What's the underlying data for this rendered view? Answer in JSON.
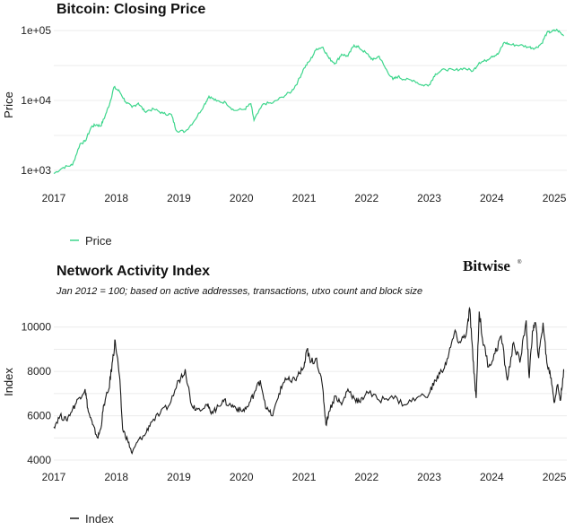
{
  "brand": {
    "name": "Bitwise",
    "mark": "®"
  },
  "chart_data": [
    {
      "type": "line",
      "title": "Bitcoin: Closing Price",
      "subtitle": "",
      "xlabel": "",
      "ylabel": "Price",
      "yscale": "log",
      "ylim": [
        700,
        120000
      ],
      "xlim": [
        2017.0,
        2025.2
      ],
      "x_ticks": [
        2017,
        2018,
        2019,
        2020,
        2021,
        2022,
        2023,
        2024,
        2025
      ],
      "x_tick_labels": [
        "2017",
        "2018",
        "2019",
        "2020",
        "2021",
        "2022",
        "2023",
        "2024",
        "2025"
      ],
      "y_ticks": [
        1000,
        10000,
        100000
      ],
      "y_tick_labels": [
        "1e+03",
        "1e+04",
        "1e+05"
      ],
      "legend": {
        "position": "bottom-left",
        "entries": [
          "Price"
        ]
      },
      "series": [
        {
          "name": "Price",
          "color": "#3dd68c",
          "x": [
            2017.0,
            2017.15,
            2017.3,
            2017.42,
            2017.5,
            2017.6,
            2017.68,
            2017.75,
            2017.82,
            2017.9,
            2017.96,
            2018.05,
            2018.15,
            2018.25,
            2018.35,
            2018.45,
            2018.6,
            2018.75,
            2018.88,
            2018.96,
            2019.1,
            2019.25,
            2019.4,
            2019.48,
            2019.6,
            2019.75,
            2019.88,
            2020.05,
            2020.15,
            2020.2,
            2020.35,
            2020.5,
            2020.65,
            2020.8,
            2020.9,
            2021.0,
            2021.1,
            2021.2,
            2021.3,
            2021.4,
            2021.5,
            2021.6,
            2021.7,
            2021.8,
            2021.88,
            2022.0,
            2022.1,
            2022.2,
            2022.3,
            2022.42,
            2022.5,
            2022.6,
            2022.75,
            2022.88,
            2023.0,
            2023.1,
            2023.25,
            2023.4,
            2023.55,
            2023.7,
            2023.8,
            2023.9,
            2024.0,
            2024.1,
            2024.2,
            2024.3,
            2024.45,
            2024.6,
            2024.7,
            2024.8,
            2024.88,
            2024.96,
            2025.05,
            2025.15
          ],
          "values": [
            900,
            1100,
            1200,
            2400,
            2600,
            4200,
            4500,
            4300,
            6000,
            9500,
            15500,
            13500,
            9500,
            8000,
            9200,
            7000,
            7500,
            6500,
            6300,
            3700,
            3600,
            5200,
            8500,
            11500,
            9800,
            9300,
            7200,
            7500,
            9000,
            5200,
            9000,
            9200,
            11200,
            13500,
            18500,
            29000,
            38000,
            55000,
            58000,
            40000,
            34000,
            46000,
            43000,
            62000,
            57000,
            47000,
            38000,
            43000,
            29000,
            20000,
            22000,
            20000,
            19500,
            16500,
            16800,
            24000,
            28000,
            27000,
            29000,
            26500,
            35000,
            37000,
            43000,
            46000,
            68000,
            63000,
            62000,
            58000,
            56000,
            66000,
            93000,
            97000,
            102000,
            84000
          ]
        }
      ]
    },
    {
      "type": "line",
      "title": "Network Activity Index",
      "subtitle": "Jan 2012 = 100; based on active addresses, transactions, utxo count and block size",
      "xlabel": "",
      "ylabel": "Index",
      "ylim": [
        3800,
        11000
      ],
      "xlim": [
        2017.0,
        2025.2
      ],
      "x_ticks": [
        2017,
        2018,
        2019,
        2020,
        2021,
        2022,
        2023,
        2024,
        2025
      ],
      "x_tick_labels": [
        "2017",
        "2018",
        "2019",
        "2020",
        "2021",
        "2022",
        "2023",
        "2024",
        "2025"
      ],
      "y_ticks": [
        4000,
        6000,
        8000,
        10000
      ],
      "y_tick_labels": [
        "4000",
        "6000",
        "8000",
        "10000"
      ],
      "legend": {
        "position": "bottom-left",
        "entries": [
          "Index"
        ]
      },
      "series": [
        {
          "name": "Index",
          "color": "#1a1a1a",
          "x": [
            2017.0,
            2017.1,
            2017.2,
            2017.3,
            2017.4,
            2017.5,
            2017.55,
            2017.62,
            2017.7,
            2017.75,
            2017.8,
            2017.88,
            2017.94,
            2017.98,
            2018.05,
            2018.1,
            2018.18,
            2018.25,
            2018.35,
            2018.45,
            2018.55,
            2018.7,
            2018.85,
            2019.0,
            2019.1,
            2019.2,
            2019.3,
            2019.45,
            2019.5,
            2019.6,
            2019.7,
            2019.8,
            2019.9,
            2020.0,
            2020.1,
            2020.2,
            2020.3,
            2020.4,
            2020.5,
            2020.6,
            2020.7,
            2020.8,
            2020.9,
            2021.0,
            2021.05,
            2021.1,
            2021.2,
            2021.3,
            2021.35,
            2021.4,
            2021.5,
            2021.6,
            2021.7,
            2021.8,
            2021.9,
            2022.0,
            2022.2,
            2022.4,
            2022.6,
            2022.8,
            2023.0,
            2023.1,
            2023.2,
            2023.3,
            2023.4,
            2023.5,
            2023.6,
            2023.65,
            2023.7,
            2023.75,
            2023.8,
            2023.85,
            2023.95,
            2024.05,
            2024.15,
            2024.25,
            2024.35,
            2024.45,
            2024.55,
            2024.6,
            2024.65,
            2024.7,
            2024.75,
            2024.82,
            2024.88,
            2024.95,
            2025.0,
            2025.05,
            2025.1,
            2025.15
          ],
          "values": [
            5500,
            6000,
            5800,
            6300,
            6800,
            7200,
            6200,
            5600,
            5000,
            5400,
            6500,
            7200,
            8500,
            9400,
            7800,
            5400,
            4900,
            4300,
            4900,
            5100,
            5700,
            6100,
            6500,
            7600,
            8100,
            6500,
            6300,
            6500,
            6200,
            6300,
            6700,
            6500,
            6400,
            6200,
            6400,
            7000,
            7600,
            6300,
            6000,
            7000,
            7700,
            7500,
            7800,
            8200,
            9000,
            8400,
            8600,
            7200,
            5600,
            6200,
            6900,
            6500,
            7200,
            6800,
            6600,
            7100,
            6700,
            6900,
            6500,
            6800,
            7000,
            7600,
            8000,
            8600,
            9700,
            9300,
            9800,
            10800,
            8500,
            6800,
            10700,
            9500,
            8200,
            8800,
            9600,
            7600,
            9300,
            8400,
            10300,
            7700,
            9800,
            10200,
            8600,
            10200,
            8400,
            7700,
            6600,
            7400,
            6700,
            8100
          ]
        }
      ]
    }
  ]
}
